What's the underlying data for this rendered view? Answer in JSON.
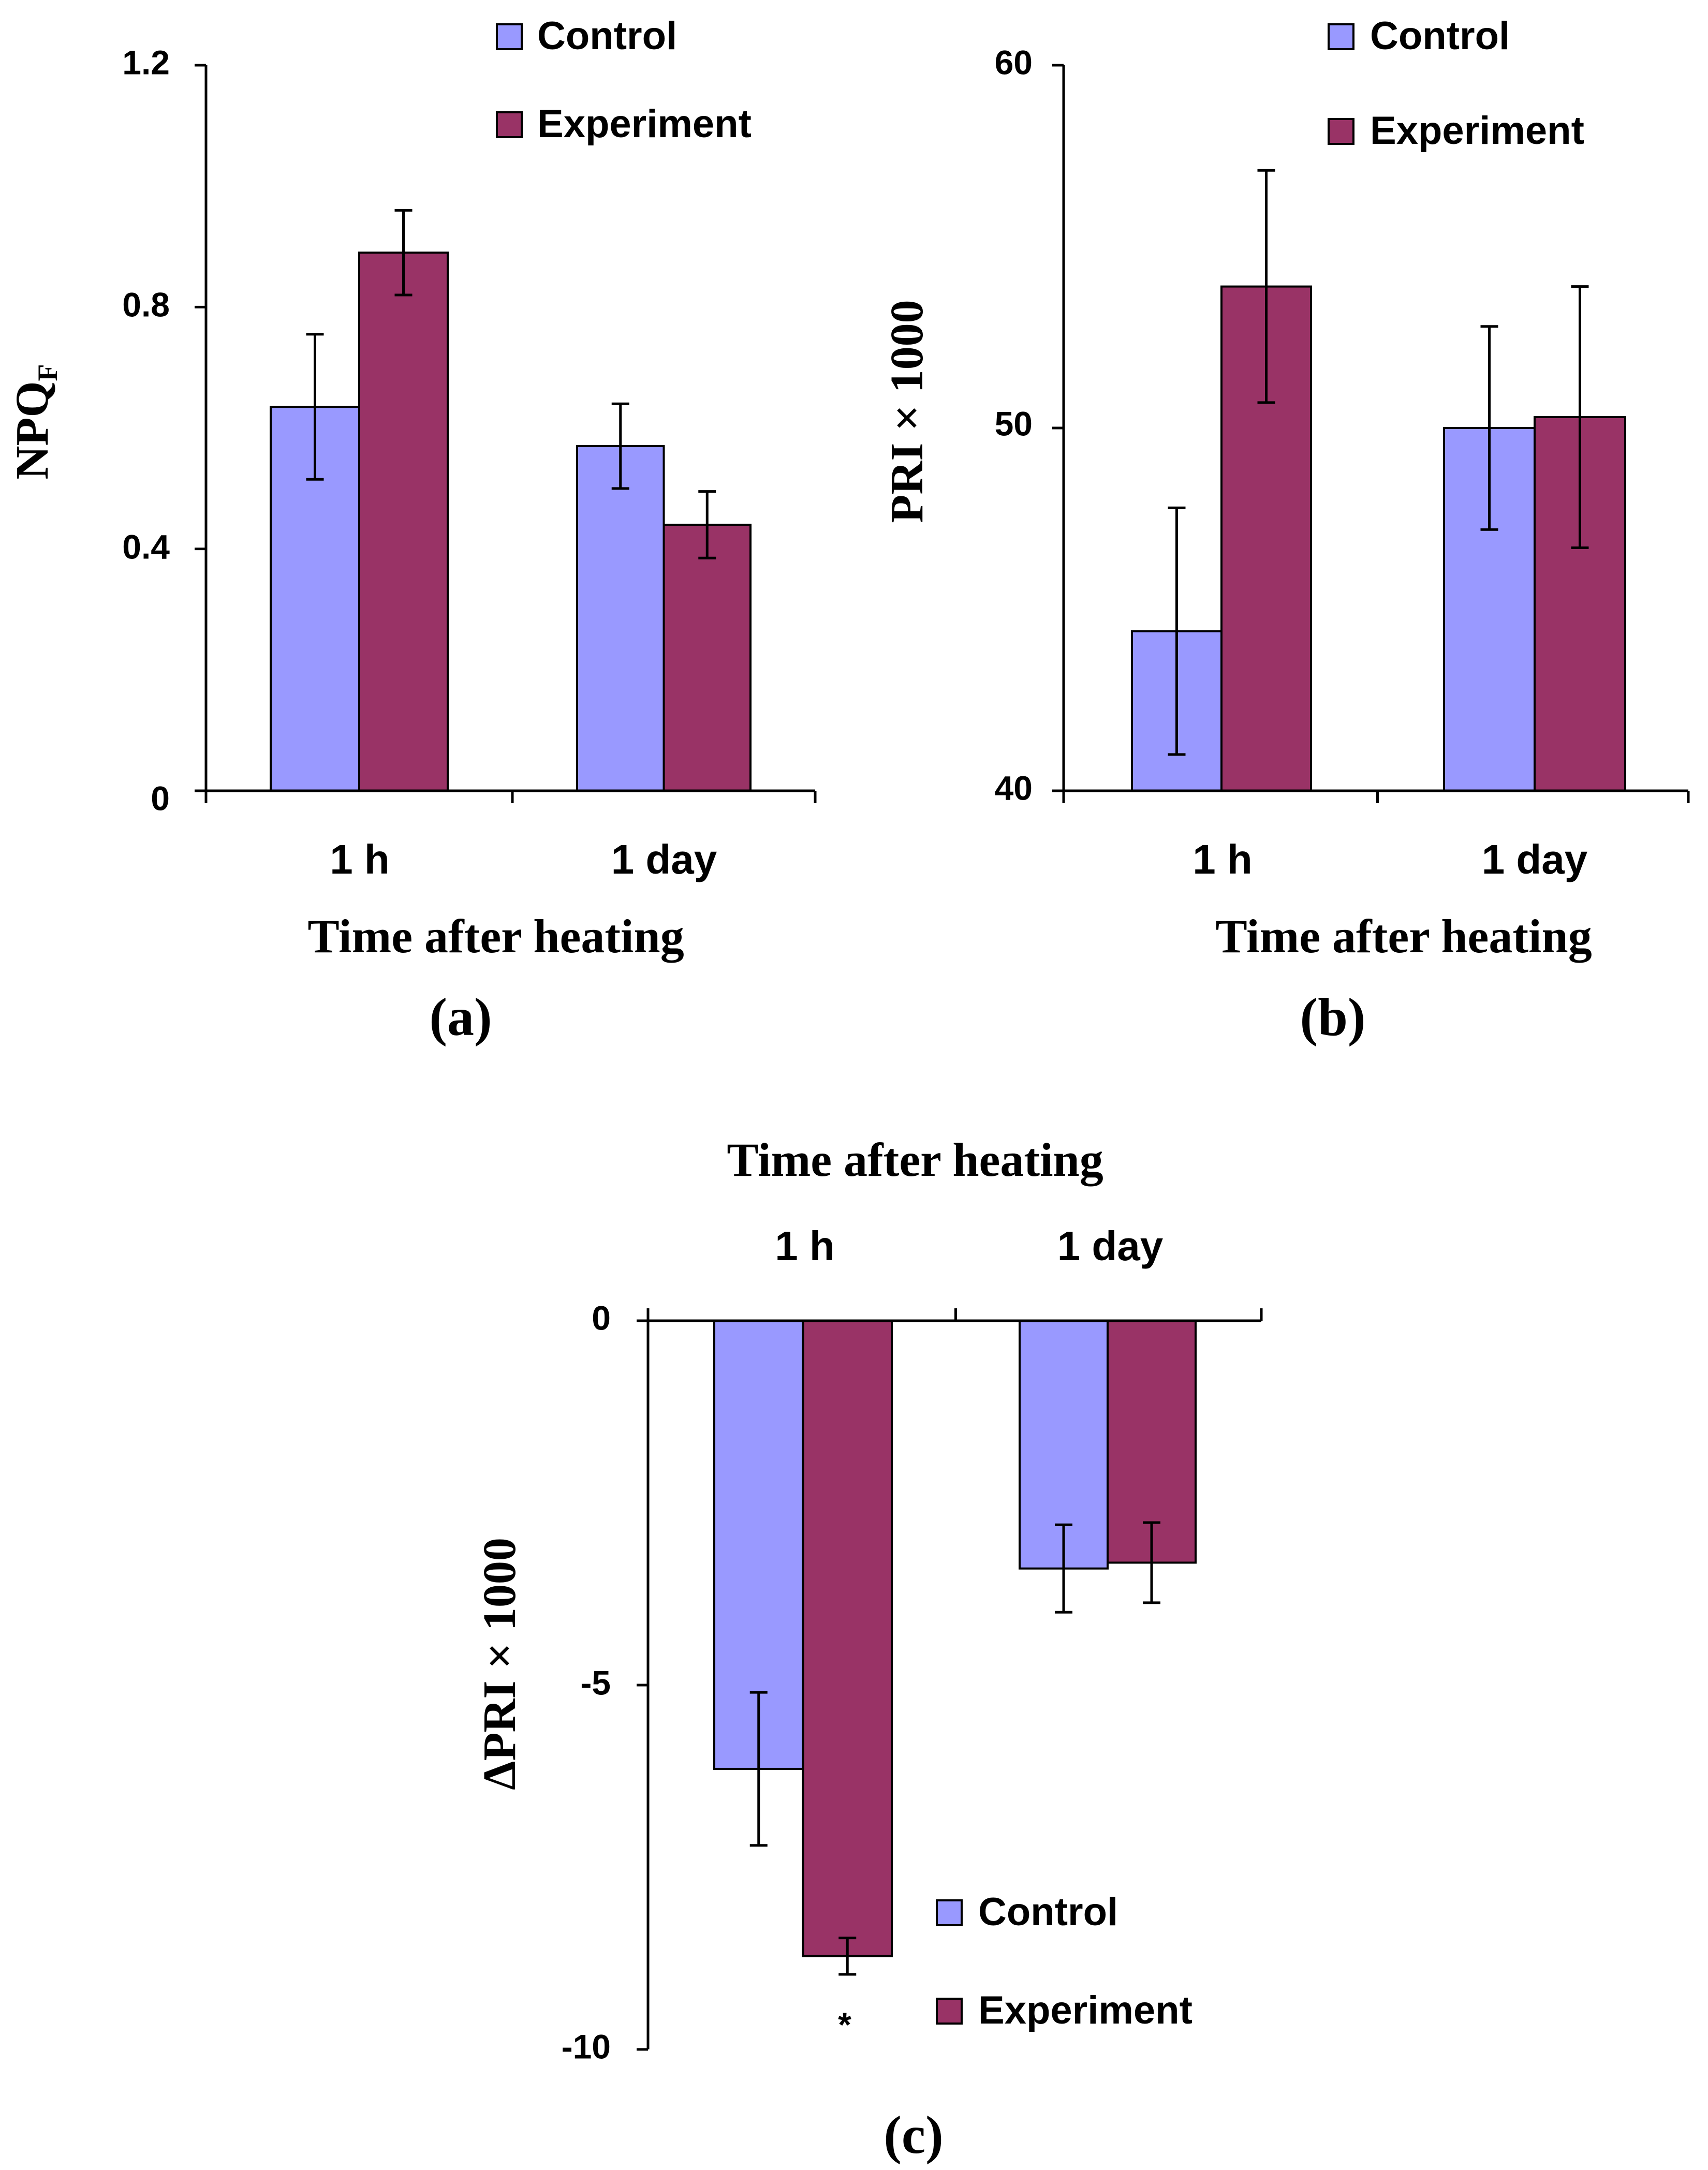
{
  "colors": {
    "control": "#9999ff",
    "experiment": "#993366"
  },
  "chart_data": [
    {
      "id": "a",
      "type": "bar",
      "panel_label": "(a)",
      "xlabel": "Time after heating",
      "ylabel": "NPQ",
      "ylabel_subscript": "F",
      "categories": [
        "1 h",
        "1 day"
      ],
      "ylim": [
        0,
        1.2
      ],
      "yticks": [
        0,
        0.4,
        0.8,
        1.2
      ],
      "ytick_labels": [
        "0",
        "0.4",
        "0.8",
        "1.2"
      ],
      "legend": {
        "position": "top-right",
        "labels": [
          "Control",
          "Experiment"
        ]
      },
      "series": [
        {
          "name": "Control",
          "values": [
            0.635,
            0.57
          ],
          "errors": [
            0.12,
            0.07
          ]
        },
        {
          "name": "Experiment",
          "values": [
            0.89,
            0.44
          ],
          "errors": [
            0.07,
            0.055
          ]
        }
      ]
    },
    {
      "id": "b",
      "type": "bar",
      "panel_label": "(b)",
      "xlabel": "Time after heating",
      "ylabel": "PRI × 1000",
      "categories": [
        "1 h",
        "1 day"
      ],
      "ylim": [
        40,
        60
      ],
      "yticks": [
        40,
        50,
        60
      ],
      "ytick_labels": [
        "40",
        "50",
        "60"
      ],
      "legend": {
        "position": "top-right",
        "labels": [
          "Control",
          "Experiment"
        ]
      },
      "series": [
        {
          "name": "Control",
          "values": [
            44.4,
            50.0
          ],
          "errors": [
            3.4,
            2.8
          ]
        },
        {
          "name": "Experiment",
          "values": [
            53.9,
            50.3
          ],
          "errors": [
            3.2,
            3.6
          ]
        }
      ]
    },
    {
      "id": "c",
      "type": "bar",
      "panel_label": "(c)",
      "xlabel": "Time after heating",
      "ylabel": "ΔPRI × 1000",
      "categories": [
        "1 h",
        "1 day"
      ],
      "ylim": [
        -10,
        0
      ],
      "yticks": [
        -10,
        -5,
        0
      ],
      "ytick_labels": [
        "-10",
        "-5",
        "0"
      ],
      "legend": {
        "position": "bottom-right",
        "labels": [
          "Control",
          "Experiment"
        ]
      },
      "annotation": "*",
      "series": [
        {
          "name": "Control",
          "values": [
            -6.15,
            -3.4
          ],
          "errors": [
            1.05,
            0.6
          ]
        },
        {
          "name": "Experiment",
          "values": [
            -8.72,
            -3.32
          ],
          "errors": [
            0.25,
            0.55
          ]
        }
      ]
    }
  ]
}
